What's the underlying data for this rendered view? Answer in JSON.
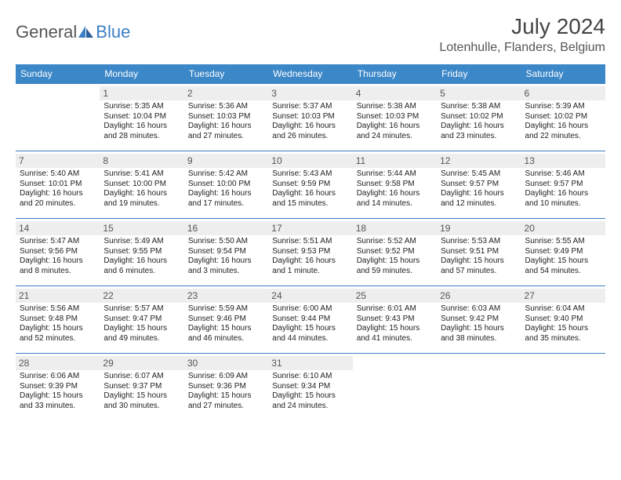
{
  "brand": {
    "part1": "General",
    "part2": "Blue"
  },
  "title": "July 2024",
  "location": "Lotenhulle, Flanders, Belgium",
  "colors": {
    "header_bg": "#3b87c8",
    "accent": "#3b7fc4",
    "daynum_bg": "#eeeeee",
    "text": "#222222"
  },
  "weekdays": [
    "Sunday",
    "Monday",
    "Tuesday",
    "Wednesday",
    "Thursday",
    "Friday",
    "Saturday"
  ],
  "start_offset": 1,
  "days": [
    {
      "n": "1",
      "sr": "Sunrise: 5:35 AM",
      "ss": "Sunset: 10:04 PM",
      "d1": "Daylight: 16 hours",
      "d2": "and 28 minutes."
    },
    {
      "n": "2",
      "sr": "Sunrise: 5:36 AM",
      "ss": "Sunset: 10:03 PM",
      "d1": "Daylight: 16 hours",
      "d2": "and 27 minutes."
    },
    {
      "n": "3",
      "sr": "Sunrise: 5:37 AM",
      "ss": "Sunset: 10:03 PM",
      "d1": "Daylight: 16 hours",
      "d2": "and 26 minutes."
    },
    {
      "n": "4",
      "sr": "Sunrise: 5:38 AM",
      "ss": "Sunset: 10:03 PM",
      "d1": "Daylight: 16 hours",
      "d2": "and 24 minutes."
    },
    {
      "n": "5",
      "sr": "Sunrise: 5:38 AM",
      "ss": "Sunset: 10:02 PM",
      "d1": "Daylight: 16 hours",
      "d2": "and 23 minutes."
    },
    {
      "n": "6",
      "sr": "Sunrise: 5:39 AM",
      "ss": "Sunset: 10:02 PM",
      "d1": "Daylight: 16 hours",
      "d2": "and 22 minutes."
    },
    {
      "n": "7",
      "sr": "Sunrise: 5:40 AM",
      "ss": "Sunset: 10:01 PM",
      "d1": "Daylight: 16 hours",
      "d2": "and 20 minutes."
    },
    {
      "n": "8",
      "sr": "Sunrise: 5:41 AM",
      "ss": "Sunset: 10:00 PM",
      "d1": "Daylight: 16 hours",
      "d2": "and 19 minutes."
    },
    {
      "n": "9",
      "sr": "Sunrise: 5:42 AM",
      "ss": "Sunset: 10:00 PM",
      "d1": "Daylight: 16 hours",
      "d2": "and 17 minutes."
    },
    {
      "n": "10",
      "sr": "Sunrise: 5:43 AM",
      "ss": "Sunset: 9:59 PM",
      "d1": "Daylight: 16 hours",
      "d2": "and 15 minutes."
    },
    {
      "n": "11",
      "sr": "Sunrise: 5:44 AM",
      "ss": "Sunset: 9:58 PM",
      "d1": "Daylight: 16 hours",
      "d2": "and 14 minutes."
    },
    {
      "n": "12",
      "sr": "Sunrise: 5:45 AM",
      "ss": "Sunset: 9:57 PM",
      "d1": "Daylight: 16 hours",
      "d2": "and 12 minutes."
    },
    {
      "n": "13",
      "sr": "Sunrise: 5:46 AM",
      "ss": "Sunset: 9:57 PM",
      "d1": "Daylight: 16 hours",
      "d2": "and 10 minutes."
    },
    {
      "n": "14",
      "sr": "Sunrise: 5:47 AM",
      "ss": "Sunset: 9:56 PM",
      "d1": "Daylight: 16 hours",
      "d2": "and 8 minutes."
    },
    {
      "n": "15",
      "sr": "Sunrise: 5:49 AM",
      "ss": "Sunset: 9:55 PM",
      "d1": "Daylight: 16 hours",
      "d2": "and 6 minutes."
    },
    {
      "n": "16",
      "sr": "Sunrise: 5:50 AM",
      "ss": "Sunset: 9:54 PM",
      "d1": "Daylight: 16 hours",
      "d2": "and 3 minutes."
    },
    {
      "n": "17",
      "sr": "Sunrise: 5:51 AM",
      "ss": "Sunset: 9:53 PM",
      "d1": "Daylight: 16 hours",
      "d2": "and 1 minute."
    },
    {
      "n": "18",
      "sr": "Sunrise: 5:52 AM",
      "ss": "Sunset: 9:52 PM",
      "d1": "Daylight: 15 hours",
      "d2": "and 59 minutes."
    },
    {
      "n": "19",
      "sr": "Sunrise: 5:53 AM",
      "ss": "Sunset: 9:51 PM",
      "d1": "Daylight: 15 hours",
      "d2": "and 57 minutes."
    },
    {
      "n": "20",
      "sr": "Sunrise: 5:55 AM",
      "ss": "Sunset: 9:49 PM",
      "d1": "Daylight: 15 hours",
      "d2": "and 54 minutes."
    },
    {
      "n": "21",
      "sr": "Sunrise: 5:56 AM",
      "ss": "Sunset: 9:48 PM",
      "d1": "Daylight: 15 hours",
      "d2": "and 52 minutes."
    },
    {
      "n": "22",
      "sr": "Sunrise: 5:57 AM",
      "ss": "Sunset: 9:47 PM",
      "d1": "Daylight: 15 hours",
      "d2": "and 49 minutes."
    },
    {
      "n": "23",
      "sr": "Sunrise: 5:59 AM",
      "ss": "Sunset: 9:46 PM",
      "d1": "Daylight: 15 hours",
      "d2": "and 46 minutes."
    },
    {
      "n": "24",
      "sr": "Sunrise: 6:00 AM",
      "ss": "Sunset: 9:44 PM",
      "d1": "Daylight: 15 hours",
      "d2": "and 44 minutes."
    },
    {
      "n": "25",
      "sr": "Sunrise: 6:01 AM",
      "ss": "Sunset: 9:43 PM",
      "d1": "Daylight: 15 hours",
      "d2": "and 41 minutes."
    },
    {
      "n": "26",
      "sr": "Sunrise: 6:03 AM",
      "ss": "Sunset: 9:42 PM",
      "d1": "Daylight: 15 hours",
      "d2": "and 38 minutes."
    },
    {
      "n": "27",
      "sr": "Sunrise: 6:04 AM",
      "ss": "Sunset: 9:40 PM",
      "d1": "Daylight: 15 hours",
      "d2": "and 35 minutes."
    },
    {
      "n": "28",
      "sr": "Sunrise: 6:06 AM",
      "ss": "Sunset: 9:39 PM",
      "d1": "Daylight: 15 hours",
      "d2": "and 33 minutes."
    },
    {
      "n": "29",
      "sr": "Sunrise: 6:07 AM",
      "ss": "Sunset: 9:37 PM",
      "d1": "Daylight: 15 hours",
      "d2": "and 30 minutes."
    },
    {
      "n": "30",
      "sr": "Sunrise: 6:09 AM",
      "ss": "Sunset: 9:36 PM",
      "d1": "Daylight: 15 hours",
      "d2": "and 27 minutes."
    },
    {
      "n": "31",
      "sr": "Sunrise: 6:10 AM",
      "ss": "Sunset: 9:34 PM",
      "d1": "Daylight: 15 hours",
      "d2": "and 24 minutes."
    }
  ]
}
